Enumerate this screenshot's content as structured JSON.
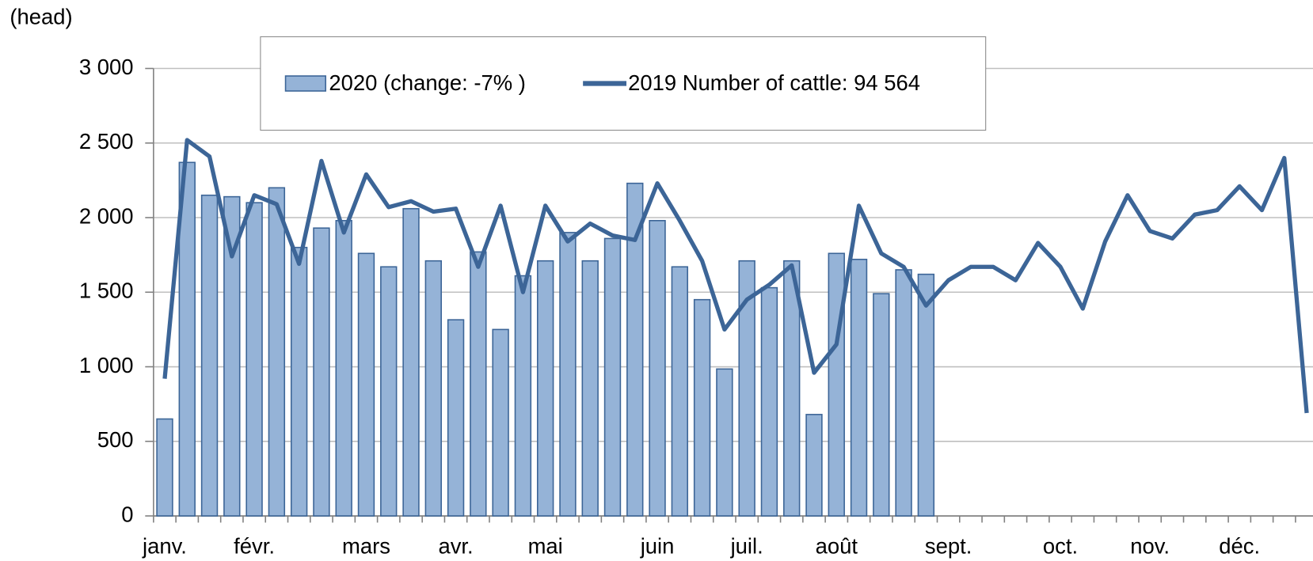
{
  "chart_data": {
    "type": "bar_line",
    "y_label": "(head)",
    "categories": [
      "janv.",
      null,
      null,
      null,
      "févr.",
      null,
      null,
      null,
      null,
      "mars",
      null,
      null,
      null,
      "avr.",
      null,
      null,
      null,
      "mai",
      null,
      null,
      null,
      null,
      "juin",
      null,
      null,
      null,
      "juil.",
      null,
      null,
      null,
      "août",
      null,
      null,
      null,
      null,
      "sept.",
      null,
      null,
      null,
      null,
      "oct.",
      null,
      null,
      null,
      "nov.",
      null,
      null,
      null,
      "déc.",
      null,
      null,
      null
    ],
    "series": [
      {
        "name": "2020 (change: -7% )",
        "kind": "bar",
        "color": "#95b3d7",
        "values": [
          650,
          2370,
          2150,
          2140,
          2100,
          2200,
          1800,
          1930,
          1980,
          1760,
          1670,
          2060,
          1710,
          1315,
          1770,
          1250,
          1610,
          1710,
          1900,
          1710,
          1860,
          2230,
          1980,
          1670,
          1450,
          985,
          1710,
          1530,
          1710,
          680,
          1760,
          1720,
          1490,
          1650,
          1620,
          null,
          null,
          null,
          null,
          null,
          null,
          null,
          null,
          null,
          null,
          null,
          null,
          null,
          null,
          null,
          null,
          null
        ]
      },
      {
        "name": "2019 Number of cattle: 94 564",
        "kind": "line",
        "color": "#3c6597",
        "values": [
          920,
          2520,
          2410,
          1740,
          2150,
          2090,
          1690,
          2380,
          1900,
          2290,
          2070,
          2110,
          2040,
          2060,
          1670,
          2080,
          1500,
          2080,
          1840,
          1960,
          1880,
          1850,
          2230,
          1980,
          1710,
          1250,
          1450,
          1550,
          1680,
          960,
          1150,
          2080,
          1760,
          1670,
          1410,
          1580,
          1670,
          1670,
          1580,
          1830,
          1670,
          1390,
          1840,
          2150,
          1910,
          1860,
          2020,
          2050,
          2210,
          2050,
          2400,
          690
        ]
      }
    ],
    "ylim": [
      0,
      3000
    ],
    "yticks": [
      0,
      500,
      {
        "value": 1000,
        "label": "1 000"
      },
      {
        "value": 1500,
        "label": "1 500"
      },
      {
        "value": 2000,
        "label": "2 000"
      },
      {
        "value": 2500,
        "label": "2 500"
      },
      {
        "value": 3000,
        "label": "3 000"
      }
    ],
    "grid": true
  }
}
